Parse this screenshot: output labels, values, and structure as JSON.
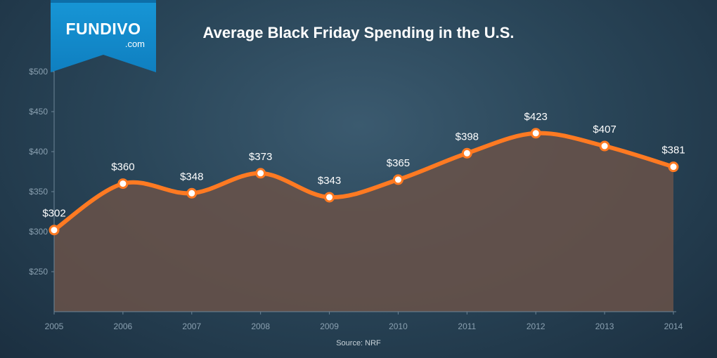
{
  "brand": {
    "name": "FUNDIVO",
    "domain": ".com"
  },
  "source": "Source: NRF",
  "colors": {
    "line": "#ff7a22",
    "area": "#6a5249",
    "marker_fill": "#ffffff",
    "axis": "#6d8597",
    "logo": "#1a9fe0"
  },
  "chart_data": {
    "type": "area",
    "title": "Average Black Friday Spending in the U.S.",
    "xlabel": "",
    "ylabel": "",
    "categories": [
      "2005",
      "2006",
      "2007",
      "2008",
      "2009",
      "2010",
      "2011",
      "2012",
      "2013",
      "2014"
    ],
    "values": [
      302,
      360,
      348,
      373,
      343,
      365,
      398,
      423,
      407,
      381
    ],
    "value_labels": [
      "$302",
      "$360",
      "$348",
      "$373",
      "$343",
      "$365",
      "$398",
      "$423",
      "$407",
      "$381"
    ],
    "ylim": [
      200,
      500
    ],
    "y_ticks": [
      250,
      300,
      350,
      400,
      450,
      500
    ],
    "y_tick_labels": [
      "$250",
      "$300",
      "$350",
      "$400",
      "$450",
      "$500"
    ],
    "grid": false,
    "smooth": true
  }
}
